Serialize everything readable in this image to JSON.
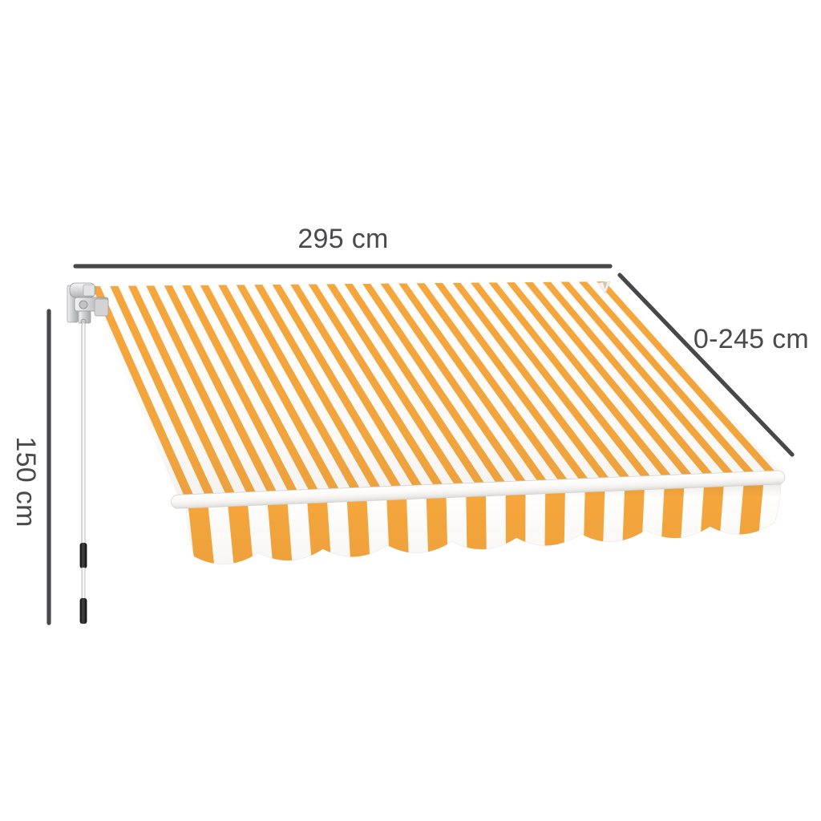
{
  "diagram": {
    "labels": {
      "width": "295 cm",
      "projection": "0-245 cm",
      "height": "150 cm"
    },
    "colors": {
      "awning_orange": "#F5A63C",
      "awning_white": "#FFFEFC",
      "dimension_line": "#48484B",
      "label_text": "#4A4A4D"
    }
  }
}
